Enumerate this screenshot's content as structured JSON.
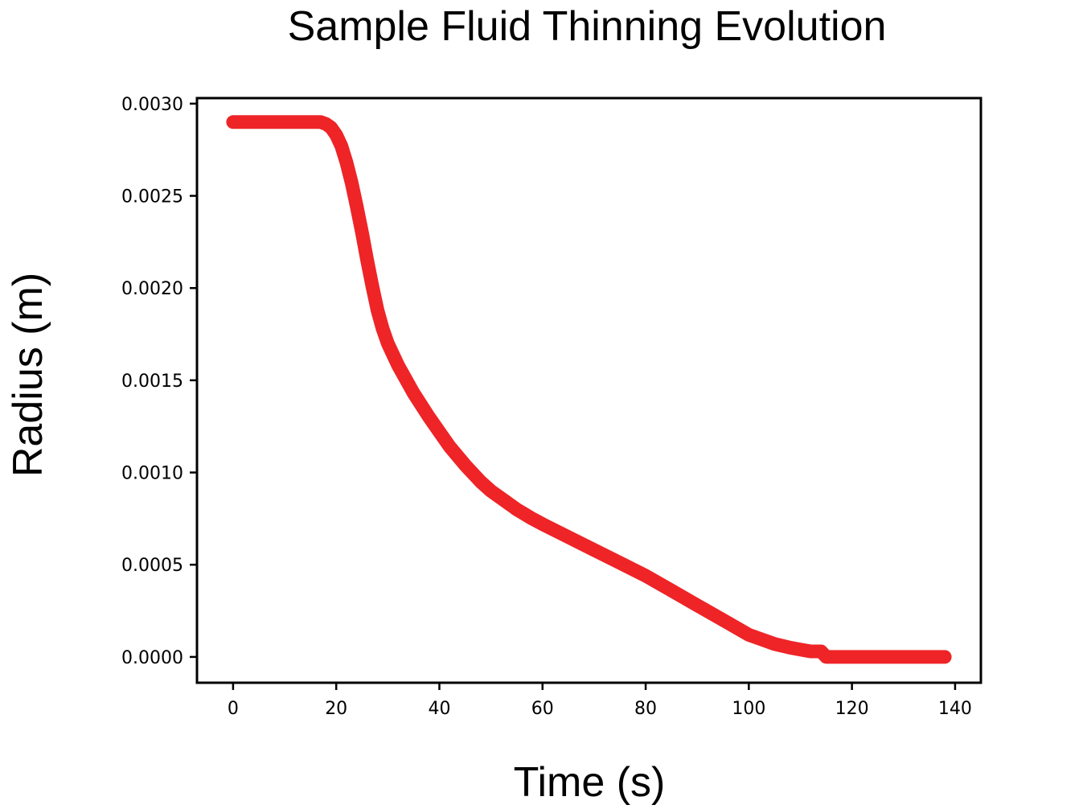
{
  "chart_data": {
    "type": "line",
    "title": "Sample Fluid Thinning Evolution",
    "xlabel": "Time (s)",
    "ylabel": "Radius (m)",
    "xlim": [
      -7,
      145
    ],
    "ylim": [
      -0.00014,
      0.00303
    ],
    "x_ticks": [
      0,
      20,
      40,
      60,
      80,
      100,
      120,
      140
    ],
    "x_tick_labels": [
      "0",
      "20",
      "40",
      "60",
      "80",
      "100",
      "120",
      "140"
    ],
    "y_ticks": [
      0,
      0.0005,
      0.001,
      0.0015,
      0.002,
      0.0025,
      0.003
    ],
    "y_tick_labels": [
      "0.0000",
      "0.0005",
      "0.0010",
      "0.0015",
      "0.0020",
      "0.0025",
      "0.0030"
    ],
    "grid": false,
    "legend": false,
    "colors": {
      "series": "#ee2427",
      "frame": "#000000",
      "background": "#ffffff"
    },
    "series": [
      {
        "x": [
          0,
          5,
          10,
          15,
          17,
          18,
          19,
          20,
          21,
          22,
          23,
          24,
          25,
          26,
          27,
          28,
          29,
          30,
          32,
          35,
          38,
          40,
          42,
          45,
          48,
          50,
          52,
          55,
          58,
          60,
          65,
          70,
          75,
          80,
          85,
          90,
          95,
          100,
          103,
          105,
          108,
          110,
          112,
          113,
          114,
          115,
          116,
          120,
          125,
          130,
          135,
          138
        ],
        "y": [
          0.0029,
          0.0029,
          0.0029,
          0.0029,
          0.0029,
          0.00289,
          0.00287,
          0.00283,
          0.00277,
          0.00268,
          0.00257,
          0.00244,
          0.0023,
          0.00215,
          0.00201,
          0.00188,
          0.00178,
          0.0017,
          0.00158,
          0.00143,
          0.0013,
          0.00122,
          0.00114,
          0.00104,
          0.00095,
          0.0009,
          0.00086,
          0.0008,
          0.00075,
          0.00072,
          0.00065,
          0.00058,
          0.00051,
          0.00044,
          0.00036,
          0.00028,
          0.0002,
          0.00012,
          9e-05,
          7e-05,
          5e-05,
          4e-05,
          3e-05,
          3e-05,
          3e-05,
          0.0,
          0.0,
          0.0,
          0.0,
          0.0,
          0.0,
          0.0
        ]
      }
    ]
  }
}
